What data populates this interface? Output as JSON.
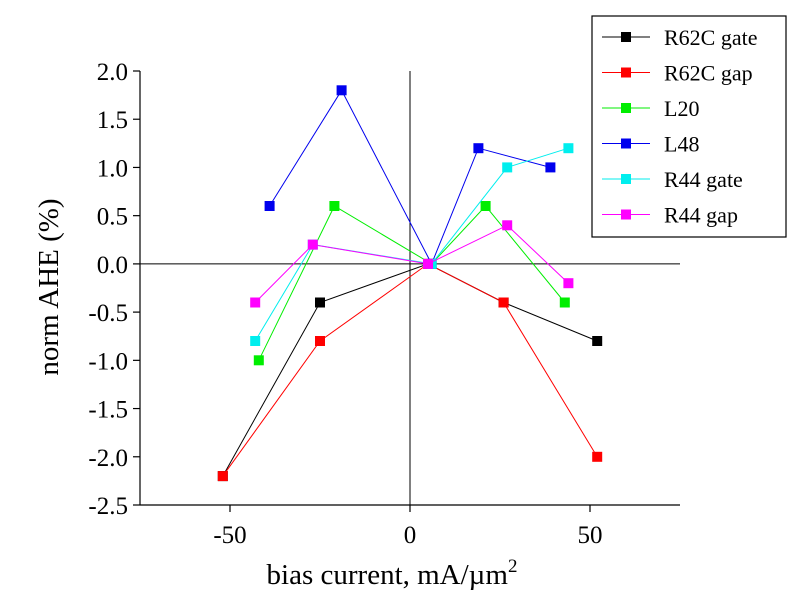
{
  "chart_data": {
    "type": "line",
    "title": "",
    "xlabel": "bias current, mA/µm",
    "xlabel_superscript": "2",
    "ylabel": "norm AHE  (%)",
    "xlim": [
      -75,
      75
    ],
    "ylim": [
      -2.5,
      2.0
    ],
    "x_ticks": [
      -50,
      0,
      50
    ],
    "y_ticks": [
      -2.5,
      -2.0,
      -1.5,
      -1.0,
      -0.5,
      0.0,
      0.5,
      1.0,
      1.5,
      2.0
    ],
    "x_tick_labels": [
      "-50",
      "0",
      "50"
    ],
    "y_tick_labels": [
      "-2.5",
      "-2.0",
      "-1.5",
      "-1.0",
      "-0.5",
      "0.0",
      "0.5",
      "1.0",
      "1.5",
      "2.0"
    ],
    "grid": false,
    "zero_lines": true,
    "legend_position": "top-right",
    "series": [
      {
        "name": "R62C gate",
        "color": "#000000",
        "x": [
          -52,
          -25,
          5,
          26,
          52
        ],
        "y": [
          -2.2,
          -0.4,
          0.0,
          -0.4,
          -0.8
        ]
      },
      {
        "name": "R62C gap",
        "color": "#ff0000",
        "x": [
          -52,
          -25,
          5,
          26,
          52
        ],
        "y": [
          -2.2,
          -0.8,
          0.0,
          -0.4,
          -2.0
        ]
      },
      {
        "name": "L20",
        "color": "#00ee00",
        "x": [
          -42,
          -21,
          6,
          21,
          43
        ],
        "y": [
          -1.0,
          0.6,
          0.0,
          0.6,
          -0.4
        ]
      },
      {
        "name": "L48",
        "color": "#0000ee",
        "x": [
          -39,
          -19,
          6,
          19,
          39
        ],
        "y": [
          0.6,
          1.8,
          0.0,
          1.2,
          1.0
        ]
      },
      {
        "name": "R44 gate",
        "color": "#00eeee",
        "x": [
          -43,
          -27,
          6,
          27,
          44
        ],
        "y": [
          -0.8,
          0.2,
          0.0,
          1.0,
          1.2
        ]
      },
      {
        "name": "R44 gap",
        "color": "#ff00ff",
        "x": [
          -43,
          -27,
          5,
          27,
          44
        ],
        "y": [
          -0.4,
          0.2,
          0.0,
          0.4,
          -0.2
        ]
      }
    ]
  }
}
